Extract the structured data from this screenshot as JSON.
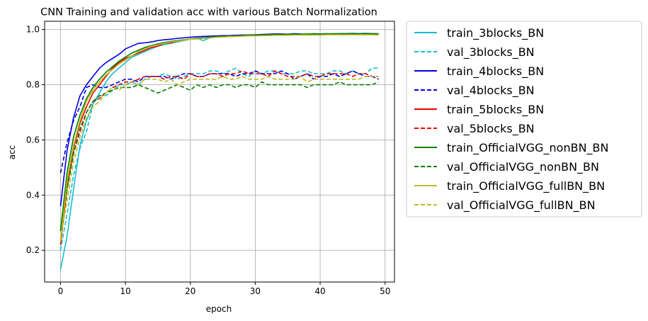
{
  "chart_data": {
    "type": "line",
    "title": "CNN Training and validation acc with various Batch Normalization",
    "xlabel": "epoch",
    "ylabel": "acc",
    "xlim": [
      -2.45,
      51.45
    ],
    "ylim": [
      0.085,
      1.03
    ],
    "xticks": [
      0,
      10,
      20,
      30,
      40,
      50
    ],
    "yticks": [
      0.2,
      0.4,
      0.6,
      0.8,
      1.0
    ],
    "grid": true,
    "legend_position": "outside-right",
    "x": [
      0,
      1,
      2,
      3,
      4,
      5,
      6,
      7,
      8,
      9,
      10,
      11,
      12,
      13,
      14,
      15,
      16,
      17,
      18,
      19,
      20,
      21,
      22,
      23,
      24,
      25,
      26,
      27,
      28,
      29,
      30,
      31,
      32,
      33,
      34,
      35,
      36,
      37,
      38,
      39,
      40,
      41,
      42,
      43,
      44,
      45,
      46,
      47,
      48,
      49
    ],
    "series": [
      {
        "name": "train_3blocks_BN",
        "color": "#17becf",
        "dash": "solid",
        "values": [
          0.13,
          0.25,
          0.42,
          0.58,
          0.67,
          0.73,
          0.77,
          0.81,
          0.84,
          0.86,
          0.88,
          0.9,
          0.91,
          0.92,
          0.93,
          0.94,
          0.945,
          0.95,
          0.955,
          0.96,
          0.965,
          0.968,
          0.96,
          0.97,
          0.972,
          0.974,
          0.975,
          0.976,
          0.977,
          0.978,
          0.978,
          0.979,
          0.979,
          0.98,
          0.98,
          0.98,
          0.981,
          0.981,
          0.981,
          0.981,
          0.982,
          0.982,
          0.982,
          0.982,
          0.982,
          0.982,
          0.982,
          0.982,
          0.982,
          0.982
        ]
      },
      {
        "name": "val_3blocks_BN",
        "color": "#17becf",
        "dash": "dashed",
        "values": [
          0.2,
          0.33,
          0.47,
          0.57,
          0.63,
          0.73,
          0.76,
          0.76,
          0.78,
          0.8,
          0.8,
          0.81,
          0.8,
          0.82,
          0.83,
          0.83,
          0.84,
          0.83,
          0.82,
          0.83,
          0.84,
          0.84,
          0.84,
          0.85,
          0.85,
          0.84,
          0.85,
          0.86,
          0.84,
          0.83,
          0.85,
          0.84,
          0.85,
          0.85,
          0.84,
          0.84,
          0.84,
          0.85,
          0.85,
          0.84,
          0.84,
          0.84,
          0.85,
          0.85,
          0.84,
          0.85,
          0.84,
          0.84,
          0.86,
          0.86
        ]
      },
      {
        "name": "train_4blocks_BN",
        "color": "#0000dd",
        "dash": "solid",
        "values": [
          0.36,
          0.56,
          0.68,
          0.76,
          0.8,
          0.83,
          0.86,
          0.88,
          0.895,
          0.91,
          0.93,
          0.94,
          0.95,
          0.952,
          0.955,
          0.96,
          0.963,
          0.965,
          0.968,
          0.97,
          0.972,
          0.974,
          0.975,
          0.976,
          0.977,
          0.978,
          0.978,
          0.979,
          0.98,
          0.98,
          0.981,
          0.982,
          0.983,
          0.984,
          0.984,
          0.983,
          0.985,
          0.984,
          0.982,
          0.985,
          0.984,
          0.985,
          0.984,
          0.985,
          0.985,
          0.986,
          0.985,
          0.986,
          0.985,
          0.985
        ]
      },
      {
        "name": "val_4blocks_BN",
        "color": "#0000dd",
        "dash": "dashed",
        "values": [
          0.48,
          0.59,
          0.67,
          0.72,
          0.79,
          0.8,
          0.79,
          0.79,
          0.8,
          0.81,
          0.82,
          0.82,
          0.81,
          0.83,
          0.83,
          0.83,
          0.83,
          0.82,
          0.83,
          0.84,
          0.84,
          0.83,
          0.83,
          0.84,
          0.84,
          0.84,
          0.84,
          0.83,
          0.84,
          0.84,
          0.85,
          0.84,
          0.84,
          0.84,
          0.85,
          0.84,
          0.82,
          0.83,
          0.84,
          0.82,
          0.83,
          0.83,
          0.84,
          0.83,
          0.84,
          0.85,
          0.84,
          0.83,
          0.83,
          0.82
        ]
      },
      {
        "name": "train_5blocks_BN",
        "color": "#ee0000",
        "dash": "solid",
        "values": [
          0.22,
          0.43,
          0.57,
          0.66,
          0.72,
          0.77,
          0.8,
          0.83,
          0.86,
          0.88,
          0.895,
          0.905,
          0.915,
          0.925,
          0.935,
          0.94,
          0.95,
          0.952,
          0.958,
          0.962,
          0.965,
          0.968,
          0.97,
          0.972,
          0.974,
          0.975,
          0.976,
          0.977,
          0.978,
          0.979,
          0.98,
          0.98,
          0.981,
          0.981,
          0.982,
          0.982,
          0.982,
          0.983,
          0.983,
          0.983,
          0.983,
          0.983,
          0.984,
          0.984,
          0.984,
          0.984,
          0.984,
          0.984,
          0.984,
          0.984
        ]
      },
      {
        "name": "val_5blocks_BN",
        "color": "#ee0000",
        "dash": "dashed",
        "values": [
          0.22,
          0.42,
          0.55,
          0.63,
          0.7,
          0.74,
          0.75,
          0.77,
          0.79,
          0.8,
          0.81,
          0.81,
          0.82,
          0.83,
          0.83,
          0.83,
          0.82,
          0.83,
          0.83,
          0.82,
          0.84,
          0.83,
          0.83,
          0.84,
          0.84,
          0.83,
          0.84,
          0.84,
          0.85,
          0.84,
          0.84,
          0.84,
          0.83,
          0.85,
          0.84,
          0.83,
          0.83,
          0.83,
          0.84,
          0.83,
          0.83,
          0.84,
          0.84,
          0.84,
          0.84,
          0.83,
          0.84,
          0.84,
          0.83,
          0.83
        ]
      },
      {
        "name": "train_OfficialVGG_nonBN_BN",
        "color": "#008000",
        "dash": "solid",
        "values": [
          0.27,
          0.48,
          0.61,
          0.69,
          0.75,
          0.79,
          0.82,
          0.845,
          0.865,
          0.885,
          0.9,
          0.915,
          0.925,
          0.935,
          0.942,
          0.948,
          0.953,
          0.957,
          0.96,
          0.963,
          0.965,
          0.968,
          0.97,
          0.972,
          0.974,
          0.975,
          0.976,
          0.977,
          0.978,
          0.979,
          0.98,
          0.98,
          0.981,
          0.982,
          0.982,
          0.982,
          0.983,
          0.983,
          0.984,
          0.984,
          0.984,
          0.984,
          0.985,
          0.985,
          0.985,
          0.985,
          0.985,
          0.985,
          0.985,
          0.984
        ]
      },
      {
        "name": "val_OfficialVGG_nonBN_BN",
        "color": "#008000",
        "dash": "dashed",
        "values": [
          0.27,
          0.42,
          0.55,
          0.64,
          0.7,
          0.74,
          0.76,
          0.77,
          0.78,
          0.79,
          0.79,
          0.79,
          0.8,
          0.79,
          0.78,
          0.77,
          0.78,
          0.79,
          0.8,
          0.79,
          0.78,
          0.8,
          0.79,
          0.8,
          0.79,
          0.8,
          0.8,
          0.79,
          0.8,
          0.8,
          0.79,
          0.81,
          0.8,
          0.8,
          0.8,
          0.8,
          0.8,
          0.8,
          0.79,
          0.8,
          0.8,
          0.8,
          0.8,
          0.81,
          0.8,
          0.8,
          0.8,
          0.8,
          0.8,
          0.81
        ]
      },
      {
        "name": "train_OfficialVGG_fullBN_BN",
        "color": "#bcbd22",
        "dash": "solid",
        "values": [
          0.23,
          0.45,
          0.58,
          0.67,
          0.74,
          0.78,
          0.81,
          0.835,
          0.855,
          0.875,
          0.89,
          0.905,
          0.92,
          0.93,
          0.94,
          0.945,
          0.95,
          0.955,
          0.958,
          0.962,
          0.965,
          0.966,
          0.968,
          0.97,
          0.972,
          0.973,
          0.974,
          0.975,
          0.976,
          0.977,
          0.977,
          0.978,
          0.978,
          0.979,
          0.979,
          0.979,
          0.98,
          0.98,
          0.98,
          0.98,
          0.98,
          0.981,
          0.981,
          0.981,
          0.981,
          0.981,
          0.981,
          0.981,
          0.981,
          0.98
        ]
      },
      {
        "name": "val_OfficialVGG_fullBN_BN",
        "color": "#bcbd22",
        "dash": "dashed",
        "values": [
          0.24,
          0.38,
          0.52,
          0.61,
          0.68,
          0.72,
          0.74,
          0.77,
          0.79,
          0.78,
          0.8,
          0.81,
          0.8,
          0.82,
          0.82,
          0.82,
          0.81,
          0.82,
          0.8,
          0.81,
          0.82,
          0.82,
          0.82,
          0.82,
          0.82,
          0.83,
          0.82,
          0.82,
          0.83,
          0.82,
          0.82,
          0.82,
          0.83,
          0.82,
          0.82,
          0.82,
          0.82,
          0.83,
          0.81,
          0.82,
          0.82,
          0.82,
          0.82,
          0.82,
          0.82,
          0.82,
          0.82,
          0.83,
          0.83,
          0.83
        ]
      }
    ]
  }
}
